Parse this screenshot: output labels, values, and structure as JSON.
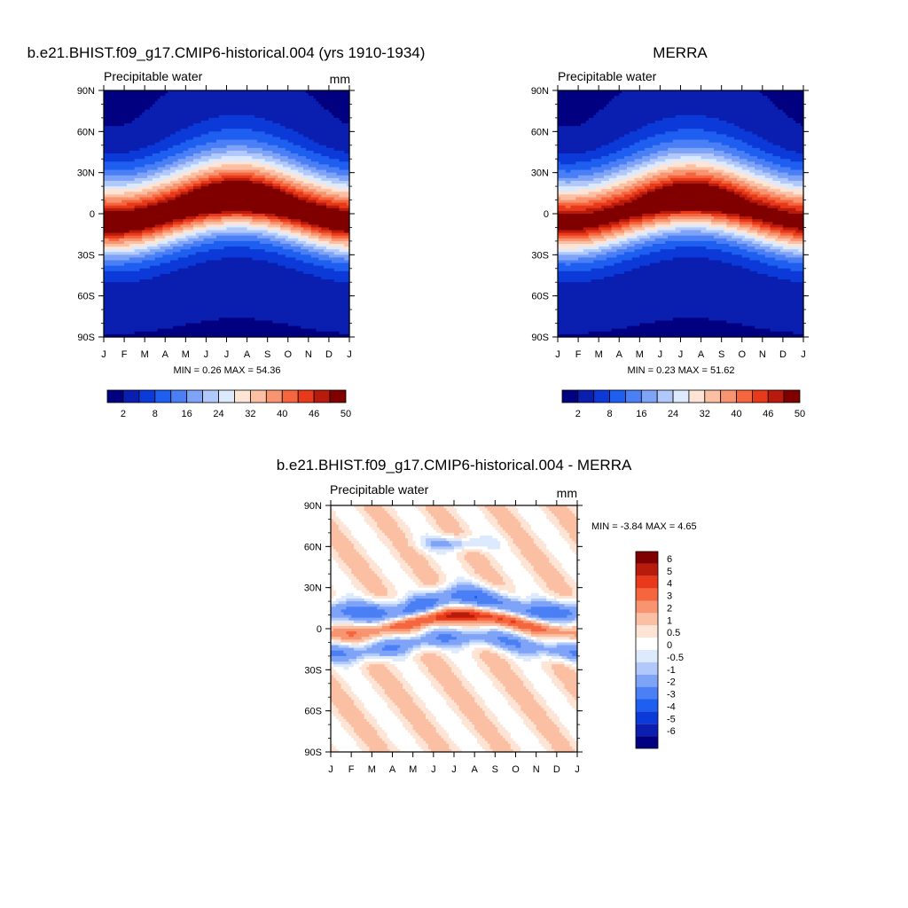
{
  "chart_data": [
    {
      "type": "heatmap",
      "title": "b.e21.BHIST.f09_g17.CMIP6-historical.004 (yrs 1910-1934)",
      "subtitle_left": "Precipitable water",
      "units": "mm",
      "x": [
        "J",
        "F",
        "M",
        "A",
        "M",
        "J",
        "J",
        "A",
        "S",
        "O",
        "N",
        "D",
        "J"
      ],
      "y_ticks": [
        "90N",
        "60N",
        "30N",
        "0",
        "30S",
        "60S",
        "90S"
      ],
      "ylim": [
        -90,
        90
      ],
      "stats": "MIN =   0.26 MAX =   54.36",
      "colorbar": {
        "levels": [
          "2",
          "8",
          "16",
          "24",
          "32",
          "40",
          "46",
          "50"
        ],
        "colors": [
          "#000080",
          "#0a1fb0",
          "#0c3ad8",
          "#1f5ff0",
          "#4a7ff5",
          "#7ea3f7",
          "#b0c8fa",
          "#dde9fd",
          "#fde4d4",
          "#fbbfa3",
          "#f99470",
          "#f5663f",
          "#e8391a",
          "#b81a0c",
          "#800000"
        ]
      }
    },
    {
      "type": "heatmap",
      "title": "MERRA",
      "subtitle_left": "Precipitable water",
      "x": [
        "J",
        "F",
        "M",
        "A",
        "M",
        "J",
        "J",
        "A",
        "S",
        "O",
        "N",
        "D",
        "J"
      ],
      "y_ticks": [
        "90N",
        "60N",
        "30N",
        "0",
        "30S",
        "60S",
        "90S"
      ],
      "ylim": [
        -90,
        90
      ],
      "stats": "MIN =   0.23 MAX =   51.62",
      "colorbar": {
        "levels": [
          "2",
          "8",
          "16",
          "24",
          "32",
          "40",
          "46",
          "50"
        ],
        "colors": [
          "#000080",
          "#0a1fb0",
          "#0c3ad8",
          "#1f5ff0",
          "#4a7ff5",
          "#7ea3f7",
          "#b0c8fa",
          "#dde9fd",
          "#fde4d4",
          "#fbbfa3",
          "#f99470",
          "#f5663f",
          "#e8391a",
          "#b81a0c",
          "#800000"
        ]
      }
    },
    {
      "type": "heatmap",
      "title": "b.e21.BHIST.f09_g17.CMIP6-historical.004 - MERRA",
      "subtitle_left": "Precipitable water",
      "units": "mm",
      "x": [
        "J",
        "F",
        "M",
        "A",
        "M",
        "J",
        "J",
        "A",
        "S",
        "O",
        "N",
        "D",
        "J"
      ],
      "y_ticks": [
        "90N",
        "60N",
        "30N",
        "0",
        "30S",
        "60S",
        "90S"
      ],
      "ylim": [
        -90,
        90
      ],
      "stats": "MIN =  -3.84 MAX =    4.65",
      "colorbar": {
        "levels": [
          "6",
          "5",
          "4",
          "3",
          "2",
          "1",
          "0.5",
          "0",
          "-0.5",
          "-1",
          "-2",
          "-3",
          "-4",
          "-5",
          "-6"
        ],
        "colors": [
          "#800000",
          "#b81a0c",
          "#e8391a",
          "#f5663f",
          "#f99470",
          "#fbbfa3",
          "#fde4d4",
          "#ffffff",
          "#dde9fd",
          "#b0c8fa",
          "#7ea3f7",
          "#4a7ff5",
          "#1f5ff0",
          "#0c3ad8",
          "#0a1fb0",
          "#000080"
        ]
      }
    }
  ]
}
